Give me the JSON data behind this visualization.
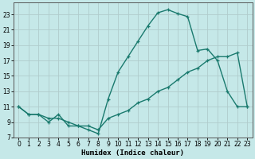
{
  "xlabel": "Humidex (Indice chaleur)",
  "x_ticks": [
    0,
    1,
    2,
    3,
    4,
    5,
    6,
    7,
    8,
    9,
    10,
    11,
    12,
    13,
    14,
    15,
    16,
    17,
    18,
    19,
    20,
    21,
    22,
    23
  ],
  "ylim": [
    7,
    24.5
  ],
  "xlim": [
    -0.5,
    23.5
  ],
  "y_ticks": [
    7,
    9,
    11,
    13,
    15,
    17,
    19,
    21,
    23
  ],
  "bg_color": "#c5e8e8",
  "grid_color": "#b0cccc",
  "line_color": "#1a7a6e",
  "line1_x": [
    0,
    1,
    2,
    3,
    4,
    5,
    6,
    7,
    8,
    9,
    10,
    11,
    12,
    13,
    14,
    15,
    16,
    17,
    18,
    19,
    20,
    21,
    22,
    23
  ],
  "line1_y": [
    11,
    10,
    10,
    9,
    10,
    8.5,
    8.5,
    8,
    7.5,
    12,
    15.5,
    17.5,
    19.5,
    21.5,
    23.2,
    23.6,
    23.1,
    22.7,
    18.3,
    18.5,
    17,
    13,
    11,
    11
  ],
  "line2_x": [
    0,
    1,
    2,
    3,
    4,
    5,
    6,
    7,
    8,
    9,
    10,
    11,
    12,
    13,
    14,
    15,
    16,
    17,
    18,
    19,
    20,
    21,
    22,
    23
  ],
  "line2_y": [
    11,
    10,
    10,
    9.5,
    9.5,
    9,
    8.5,
    8.5,
    8,
    9.5,
    10,
    10.5,
    11.5,
    12,
    13,
    13.5,
    14.5,
    15.5,
    16,
    17,
    17.5,
    17.5,
    18,
    11
  ]
}
